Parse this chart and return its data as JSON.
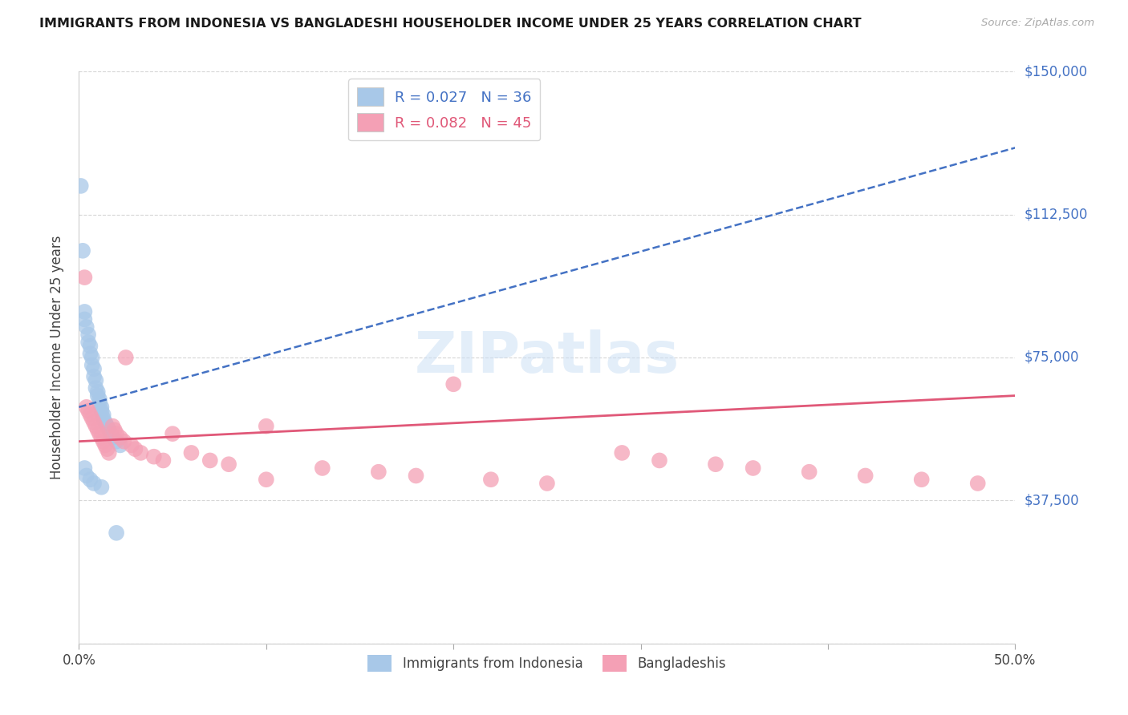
{
  "title": "IMMIGRANTS FROM INDONESIA VS BANGLADESHI HOUSEHOLDER INCOME UNDER 25 YEARS CORRELATION CHART",
  "source": "Source: ZipAtlas.com",
  "ylabel": "Householder Income Under 25 years",
  "xlim": [
    0.0,
    0.5
  ],
  "ylim": [
    0,
    150000
  ],
  "yticks": [
    0,
    37500,
    75000,
    112500,
    150000
  ],
  "xticks": [
    0.0,
    0.1,
    0.2,
    0.3,
    0.4,
    0.5
  ],
  "xtick_labels": [
    "0.0%",
    "",
    "",
    "",
    "",
    "50.0%"
  ],
  "watermark": "ZIPatlas",
  "blue_R": 0.027,
  "blue_N": 36,
  "pink_R": 0.082,
  "pink_N": 45,
  "blue_color": "#a8c8e8",
  "blue_line_color": "#4472c4",
  "pink_color": "#f4a0b5",
  "pink_line_color": "#e05878",
  "background_color": "#ffffff",
  "grid_color": "#cccccc",
  "title_color": "#1a1a1a",
  "indonesia_x": [
    0.001,
    0.002,
    0.003,
    0.003,
    0.004,
    0.005,
    0.005,
    0.006,
    0.006,
    0.007,
    0.007,
    0.008,
    0.008,
    0.009,
    0.009,
    0.01,
    0.01,
    0.011,
    0.011,
    0.012,
    0.012,
    0.013,
    0.013,
    0.014,
    0.015,
    0.016,
    0.017,
    0.018,
    0.02,
    0.022,
    0.003,
    0.004,
    0.006,
    0.008,
    0.012,
    0.02
  ],
  "indonesia_y": [
    120000,
    103000,
    87000,
    85000,
    83000,
    81000,
    79000,
    78000,
    76000,
    75000,
    73000,
    72000,
    70000,
    69000,
    67000,
    66000,
    65000,
    64000,
    63000,
    62000,
    61000,
    60000,
    59000,
    58000,
    57000,
    56000,
    55000,
    54000,
    53000,
    52000,
    46000,
    44000,
    43000,
    42000,
    41000,
    29000
  ],
  "bangladesh_x": [
    0.003,
    0.004,
    0.005,
    0.006,
    0.007,
    0.008,
    0.009,
    0.01,
    0.011,
    0.012,
    0.013,
    0.014,
    0.015,
    0.016,
    0.018,
    0.019,
    0.02,
    0.022,
    0.024,
    0.025,
    0.028,
    0.03,
    0.033,
    0.04,
    0.045,
    0.05,
    0.06,
    0.07,
    0.08,
    0.1,
    0.13,
    0.16,
    0.18,
    0.2,
    0.22,
    0.25,
    0.29,
    0.31,
    0.34,
    0.36,
    0.39,
    0.42,
    0.45,
    0.48,
    0.1
  ],
  "bangladesh_y": [
    96000,
    62000,
    61000,
    60000,
    59000,
    58000,
    57000,
    56000,
    55000,
    54000,
    53000,
    52000,
    51000,
    50000,
    57000,
    56000,
    55000,
    54000,
    53000,
    75000,
    52000,
    51000,
    50000,
    49000,
    48000,
    55000,
    50000,
    48000,
    47000,
    57000,
    46000,
    45000,
    44000,
    68000,
    43000,
    42000,
    50000,
    48000,
    47000,
    46000,
    45000,
    44000,
    43000,
    42000,
    43000
  ]
}
